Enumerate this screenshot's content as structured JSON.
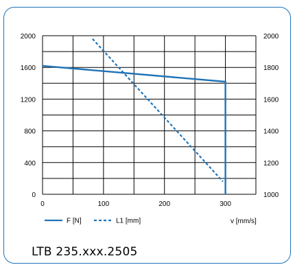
{
  "colors": {
    "accent": "#1f73b7",
    "frame": "#1f73b7",
    "grid": "#000000"
  },
  "chart_data": {
    "type": "line",
    "title": "LTB 235.xxx.2505",
    "xlabel": "v  [mm/s]",
    "x_ticks": [
      0,
      100,
      200,
      300
    ],
    "xlim": [
      0,
      350
    ],
    "y_left": {
      "ticks": [
        0,
        400,
        800,
        1200,
        1600,
        2000
      ],
      "lim": [
        0,
        2000
      ]
    },
    "y_right": {
      "ticks": [
        1000,
        1200,
        1400,
        1600,
        1800,
        2000
      ],
      "lim": [
        1000,
        2000
      ]
    },
    "grid": true,
    "legend_position": "bottom-left",
    "series": [
      {
        "name": "F [N]",
        "axis": "left",
        "style": "solid",
        "color": "#1f73b7",
        "points": [
          [
            0,
            1620
          ],
          [
            300,
            1420
          ],
          [
            300,
            0
          ]
        ]
      },
      {
        "name": "L1 [mm]",
        "axis": "right",
        "style": "dashed",
        "color": "#1f73b7",
        "points": [
          [
            82,
            1980
          ],
          [
            296,
            1080
          ]
        ]
      }
    ]
  }
}
